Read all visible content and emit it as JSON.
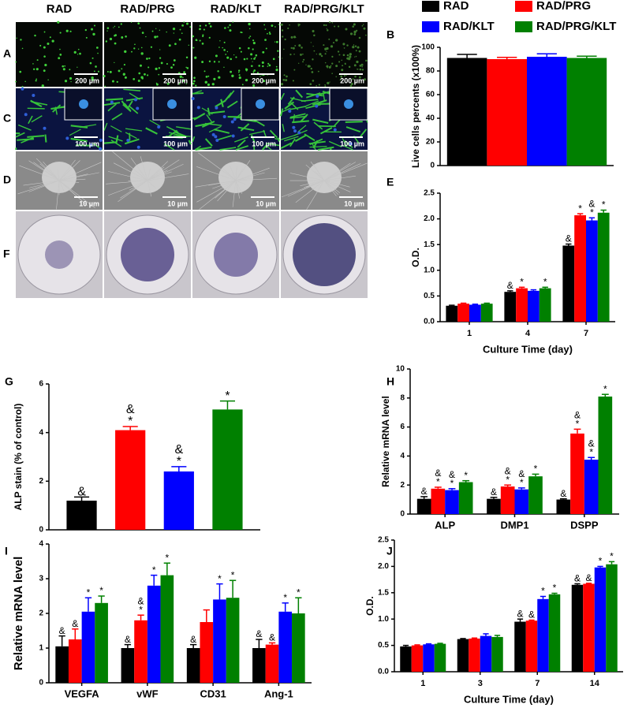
{
  "figure": {
    "column_headers": [
      "RAD",
      "RAD/PRG",
      "RAD/KLT",
      "RAD/PRG/KLT"
    ],
    "legend": [
      {
        "name": "RAD",
        "color": "#000000"
      },
      {
        "name": "RAD/PRG",
        "color": "#ff0000"
      },
      {
        "name": "RAD/KLT",
        "color": "#0000ff"
      },
      {
        "name": "RAD/PRG/KLT",
        "color": "#008000"
      }
    ],
    "image_rows": [
      {
        "label": "A",
        "scale_bar": "200 µm"
      },
      {
        "label": "C",
        "scale_bar": "100 µm"
      },
      {
        "label": "D",
        "scale_bar": "10 µm"
      },
      {
        "label": "F"
      }
    ]
  },
  "chart_data": [
    {
      "type": "bar",
      "label": "B",
      "ylabel": "Live cells percents (x100%)",
      "categories": [
        null
      ],
      "ylim": [
        0,
        100
      ],
      "yticks": [
        0,
        20,
        40,
        60,
        80,
        100
      ],
      "series": [
        {
          "color": "#000000",
          "values": [
            91
          ],
          "errors": [
            3
          ]
        },
        {
          "color": "#ff0000",
          "values": [
            90
          ],
          "errors": [
            1.5
          ]
        },
        {
          "color": "#0000ff",
          "values": [
            92
          ],
          "errors": [
            2.5
          ]
        },
        {
          "color": "#008000",
          "values": [
            91
          ],
          "errors": [
            1.5
          ]
        }
      ]
    },
    {
      "type": "bar",
      "label": "E",
      "ylabel": "O.D.",
      "xlabel": "Culture Time (day)",
      "categories": [
        "1",
        "4",
        "7"
      ],
      "ylim": [
        0,
        2.5
      ],
      "yticks": [
        {
          "value": 0,
          "label": "0.0"
        },
        0.5,
        {
          "value": 1,
          "label": "1.0"
        },
        1.5,
        {
          "value": 2,
          "label": "2.0"
        },
        2.5
      ],
      "series": [
        {
          "color": "#000000",
          "values": [
            0.31,
            0.58,
            1.48
          ],
          "errors": [
            0.01,
            0.02,
            0.03
          ],
          "annotations": [
            [],
            [
              "&"
            ],
            [
              "&"
            ]
          ]
        },
        {
          "color": "#ff0000",
          "values": [
            0.35,
            0.65,
            2.07
          ],
          "errors": [
            0.01,
            0.02,
            0.03
          ],
          "annotations": [
            [],
            [
              "*"
            ],
            [
              "*"
            ]
          ]
        },
        {
          "color": "#0000ff",
          "values": [
            0.33,
            0.6,
            1.97
          ],
          "errors": [
            0.01,
            0.02,
            0.05
          ],
          "annotations": [
            [],
            [],
            [
              "&",
              "*"
            ]
          ]
        },
        {
          "color": "#008000",
          "values": [
            0.35,
            0.65,
            2.12
          ],
          "errors": [
            0.01,
            0.02,
            0.05
          ],
          "annotations": [
            [],
            [
              "*"
            ],
            [
              "*"
            ]
          ]
        }
      ]
    },
    {
      "type": "bar",
      "label": "G",
      "ylabel": "ALP stain (% of control)",
      "categories": [
        null
      ],
      "ylim": [
        0,
        6
      ],
      "yticks": [
        0,
        2,
        4,
        6
      ],
      "series": [
        {
          "color": "#000000",
          "values": [
            1.2
          ],
          "errors": [
            0.15
          ],
          "annotations": [
            [
              "&"
            ]
          ]
        },
        {
          "color": "#ff0000",
          "values": [
            4.1
          ],
          "errors": [
            0.15
          ],
          "annotations": [
            [
              "&",
              "*"
            ]
          ]
        },
        {
          "color": "#0000ff",
          "values": [
            2.4
          ],
          "errors": [
            0.2
          ],
          "annotations": [
            [
              "&",
              "*"
            ]
          ]
        },
        {
          "color": "#008000",
          "values": [
            4.95
          ],
          "errors": [
            0.35
          ],
          "annotations": [
            [
              "*"
            ]
          ]
        }
      ]
    },
    {
      "type": "bar",
      "label": "H",
      "ylabel": "Relative mRNA level",
      "categories": [
        "ALP",
        "DMP1",
        "DSPP"
      ],
      "ylim": [
        0,
        10
      ],
      "yticks": [
        0,
        2,
        4,
        6,
        8,
        10
      ],
      "series": [
        {
          "color": "#000000",
          "values": [
            1.05,
            1.05,
            1.0
          ],
          "errors": [
            0.15,
            0.1,
            0.05
          ],
          "annotations": [
            [
              "&"
            ],
            [
              "&"
            ],
            [
              "&"
            ]
          ]
        },
        {
          "color": "#ff0000",
          "values": [
            1.75,
            1.9,
            5.55
          ],
          "errors": [
            0.1,
            0.1,
            0.3
          ],
          "annotations": [
            [
              "&",
              "*"
            ],
            [
              "&",
              "*"
            ],
            [
              "&",
              "*"
            ]
          ]
        },
        {
          "color": "#0000ff",
          "values": [
            1.65,
            1.7,
            3.75
          ],
          "errors": [
            0.1,
            0.1,
            0.15
          ],
          "annotations": [
            [
              "&",
              "*"
            ],
            [
              "&",
              "*"
            ],
            [
              "&",
              "*"
            ]
          ]
        },
        {
          "color": "#008000",
          "values": [
            2.2,
            2.6,
            8.1
          ],
          "errors": [
            0.1,
            0.15,
            0.15
          ],
          "annotations": [
            [
              "*"
            ],
            [
              "*"
            ],
            [
              "*"
            ]
          ]
        }
      ]
    },
    {
      "type": "bar",
      "label": "I",
      "ylabel": "Relative mRNA level",
      "categories": [
        "VEGFA",
        "vWF",
        "CD31",
        "Ang-1"
      ],
      "ylim": [
        0,
        4
      ],
      "yticks": [
        0,
        1,
        2,
        3,
        4
      ],
      "series": [
        {
          "color": "#000000",
          "values": [
            1.05,
            1.0,
            1.0,
            1.0
          ],
          "errors": [
            0.3,
            0.1,
            0.1,
            0.25
          ],
          "annotations": [
            [
              "&"
            ],
            [
              "&"
            ],
            [
              "&"
            ],
            [
              "&"
            ]
          ]
        },
        {
          "color": "#ff0000",
          "values": [
            1.25,
            1.8,
            1.75,
            1.1
          ],
          "errors": [
            0.3,
            0.15,
            0.35,
            0.05
          ],
          "annotations": [
            [
              "&"
            ],
            [
              "&",
              "*"
            ],
            [],
            [
              "&"
            ]
          ]
        },
        {
          "color": "#0000ff",
          "values": [
            2.05,
            2.8,
            2.4,
            2.05
          ],
          "errors": [
            0.4,
            0.3,
            0.45,
            0.25
          ],
          "annotations": [
            [
              "*"
            ],
            [
              "*"
            ],
            [
              "*"
            ],
            [
              "*"
            ]
          ]
        },
        {
          "color": "#008000",
          "values": [
            2.3,
            3.1,
            2.45,
            2.0
          ],
          "errors": [
            0.2,
            0.35,
            0.5,
            0.45
          ],
          "annotations": [
            [
              "*"
            ],
            [
              "*"
            ],
            [
              "*"
            ],
            [
              "*"
            ]
          ]
        }
      ]
    },
    {
      "type": "bar",
      "label": "J",
      "ylabel": "O.D.",
      "xlabel": "Culture Time (day)",
      "categories": [
        "1",
        "3",
        "7",
        "14"
      ],
      "ylim": [
        0,
        2.5
      ],
      "yticks": [
        {
          "value": 0,
          "label": "0.0"
        },
        0.5,
        {
          "value": 1,
          "label": "1.0"
        },
        1.5,
        {
          "value": 2,
          "label": "2.0"
        },
        2.5
      ],
      "series": [
        {
          "color": "#000000",
          "values": [
            0.48,
            0.62,
            0.95,
            1.65
          ],
          "errors": [
            0.02,
            0.01,
            0.05,
            0.02
          ],
          "annotations": [
            [],
            [],
            [
              "&"
            ],
            [
              "&"
            ]
          ]
        },
        {
          "color": "#ff0000",
          "values": [
            0.5,
            0.63,
            0.97,
            1.67
          ],
          "errors": [
            0.01,
            0.01,
            0.01,
            0.01
          ],
          "annotations": [
            [],
            [],
            [
              "&"
            ],
            [
              "&"
            ]
          ]
        },
        {
          "color": "#0000ff",
          "values": [
            0.52,
            0.68,
            1.38,
            1.98
          ],
          "errors": [
            0.01,
            0.04,
            0.05,
            0.02
          ],
          "annotations": [
            [],
            [],
            [
              "*"
            ],
            [
              "*"
            ]
          ]
        },
        {
          "color": "#008000",
          "values": [
            0.53,
            0.66,
            1.47,
            2.04
          ],
          "errors": [
            0.01,
            0.03,
            0.02,
            0.05
          ],
          "annotations": [
            [],
            [],
            [
              "*"
            ],
            [
              "*"
            ]
          ]
        }
      ]
    }
  ]
}
